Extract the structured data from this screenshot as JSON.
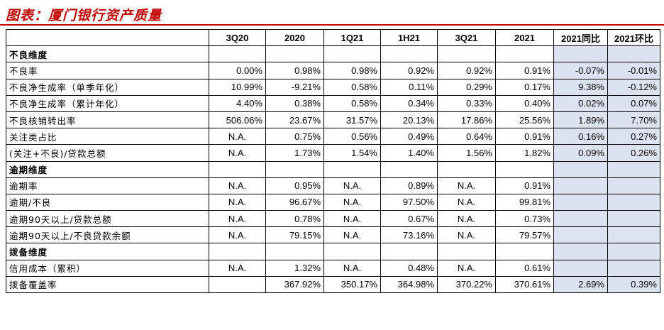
{
  "title": "图表：厦门银行资产质量",
  "columns": [
    "3Q20",
    "2020",
    "1Q21",
    "1H21",
    "3Q21",
    "2021",
    "2021同比",
    "2021环比"
  ],
  "rows": [
    {
      "type": "section",
      "label": "不良维度"
    },
    {
      "type": "data",
      "label": "不良率",
      "values": [
        "0.00%",
        "0.98%",
        "0.98%",
        "0.92%",
        "0.92%",
        "0.91%",
        "-0.07%",
        "-0.01%"
      ]
    },
    {
      "type": "data",
      "label": "不良净生成率（单季年化）",
      "values": [
        "10.99%",
        "-9.21%",
        "0.58%",
        "0.11%",
        "0.29%",
        "0.17%",
        "9.38%",
        "-0.12%"
      ]
    },
    {
      "type": "data",
      "label": "不良净生成率（累计年化）",
      "values": [
        "4.40%",
        "0.38%",
        "0.58%",
        "0.34%",
        "0.33%",
        "0.40%",
        "0.02%",
        "0.07%"
      ]
    },
    {
      "type": "data",
      "label": "不良核销转出率",
      "values": [
        "506.06%",
        "23.67%",
        "31.57%",
        "20.13%",
        "17.86%",
        "25.56%",
        "1.89%",
        "7.70%"
      ]
    },
    {
      "type": "data",
      "label": "关注类占比",
      "values": [
        "N.A.",
        "0.75%",
        "0.56%",
        "0.49%",
        "0.64%",
        "0.91%",
        "0.16%",
        "0.27%"
      ]
    },
    {
      "type": "data",
      "label": "(关注+不良)/贷款总额",
      "values": [
        "N.A.",
        "1.73%",
        "1.54%",
        "1.40%",
        "1.56%",
        "1.82%",
        "0.09%",
        "0.26%"
      ]
    },
    {
      "type": "section",
      "label": "逾期维度"
    },
    {
      "type": "data",
      "label": "逾期率",
      "values": [
        "N.A.",
        "0.95%",
        "N.A.",
        "0.89%",
        "N.A.",
        "0.91%",
        "",
        ""
      ]
    },
    {
      "type": "data",
      "label": "逾期/不良",
      "values": [
        "N.A.",
        "96.67%",
        "N.A.",
        "97.50%",
        "N.A.",
        "99.81%",
        "",
        ""
      ]
    },
    {
      "type": "data",
      "label": "逾期90天以上/贷款总额",
      "values": [
        "N.A.",
        "0.78%",
        "N.A.",
        "0.67%",
        "N.A.",
        "0.73%",
        "",
        ""
      ]
    },
    {
      "type": "data",
      "label": "逾期90天以上/不良贷款余额",
      "values": [
        "N.A.",
        "79.15%",
        "N.A.",
        "73.16%",
        "N.A.",
        "79.57%",
        "",
        ""
      ]
    },
    {
      "type": "section",
      "label": "拨备维度"
    },
    {
      "type": "data",
      "label": "信用成本（累积）",
      "values": [
        "N.A.",
        "1.32%",
        "N.A.",
        "0.48%",
        "N.A.",
        "0.61%",
        "",
        ""
      ]
    },
    {
      "type": "data",
      "label": "拨备覆盖率",
      "values": [
        "",
        "367.92%",
        "350.17%",
        "364.98%",
        "370.22%",
        "370.61%",
        "2.69%",
        "0.39%"
      ]
    }
  ]
}
